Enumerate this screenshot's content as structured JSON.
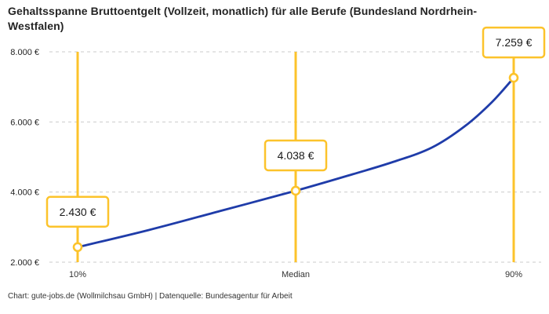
{
  "title": "Gehaltsspanne Bruttoentgelt (Vollzeit, monatlich) für alle Berufe (Bundesland Nordrhein-Westfalen)",
  "footer": "Chart: gute-jobs.de (Wollmilchsau GmbH) | Datenquelle: Bundesagentur für Arbeit",
  "colors": {
    "accent_yellow": "#FCC32B",
    "line_blue": "#1F3CA9",
    "grid": "#CBCBCB",
    "tick_text": "#222222",
    "x_tick_text": "#333333",
    "box_text": "#1A1A1A",
    "box_bg": "#FFFFFF"
  },
  "chart_data": {
    "type": "line",
    "title": "Gehaltsspanne Bruttoentgelt (Vollzeit, monatlich) für alle Berufe (Bundesland Nordrhein-Westfalen)",
    "source": "Chart: gute-jobs.de (Wollmilchsau GmbH) | Datenquelle: Bundesagentur für Arbeit",
    "legend": "none",
    "grid": "dashed-horizontal",
    "x_axis": {
      "label": "",
      "ticks": [
        "10%",
        "Median",
        "90%"
      ]
    },
    "y_axis": {
      "label": "",
      "range": [
        2000,
        8000
      ],
      "ticks": [
        {
          "value": 2000,
          "label": "2.000 €"
        },
        {
          "value": 4000,
          "label": "4.000 €"
        },
        {
          "value": 6000,
          "label": "6.000 €"
        },
        {
          "value": 8000,
          "label": "8.000 €"
        }
      ]
    },
    "series": [
      {
        "name": "Bruttoentgelt (Vollzeit, monatlich)",
        "points": [
          {
            "percentile": 10,
            "value": 2430,
            "label": "10%",
            "display": "2.430 €",
            "marked": true
          },
          {
            "percentile": 23,
            "value": 2915
          },
          {
            "percentile": 36.5,
            "value": 3475
          },
          {
            "percentile": 50,
            "value": 4038,
            "label": "Median",
            "display": "4.038 €",
            "marked": true
          },
          {
            "percentile": 60.5,
            "value": 4510
          },
          {
            "percentile": 68,
            "value": 4865
          },
          {
            "percentile": 75,
            "value": 5270
          },
          {
            "percentile": 81,
            "value": 5875
          },
          {
            "percentile": 86,
            "value": 6565
          },
          {
            "percentile": 90,
            "value": 7259,
            "label": "90%",
            "display": "7.259 €",
            "marked": true
          }
        ]
      }
    ]
  }
}
